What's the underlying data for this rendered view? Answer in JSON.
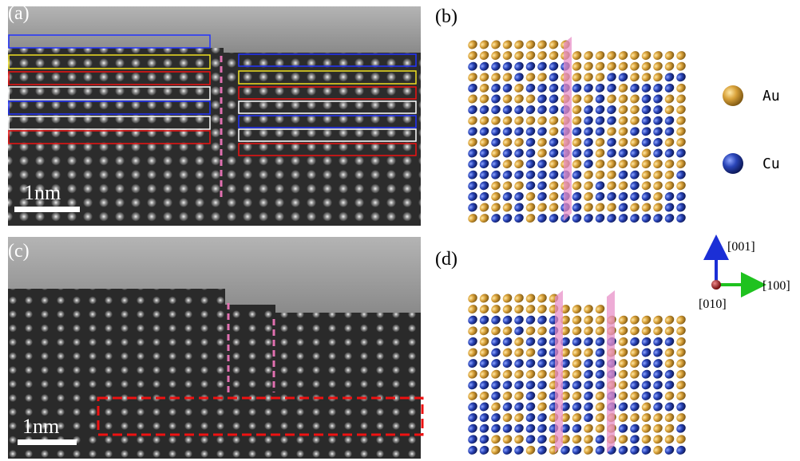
{
  "panels": [
    {
      "label": "(a)",
      "scale_bar": "1nm"
    },
    {
      "label": "(b)"
    },
    {
      "label": "(c)",
      "scale_bar": "1nm"
    },
    {
      "label": "(d)"
    }
  ],
  "legend": [
    {
      "label": "Au"
    },
    {
      "label": "Cu"
    }
  ],
  "axes": {
    "z": "[001]",
    "x": "[100]",
    "y": "[010]"
  }
}
